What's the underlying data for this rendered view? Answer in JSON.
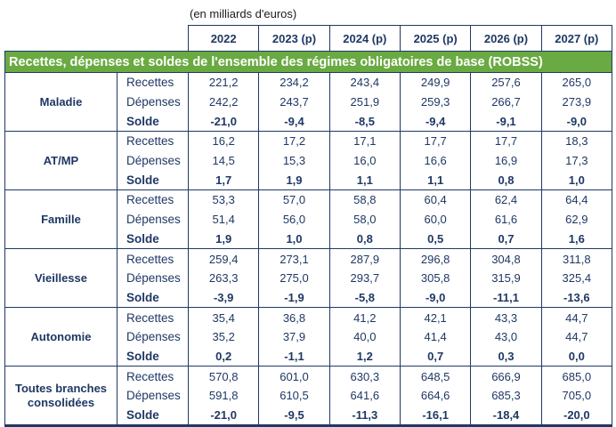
{
  "unit_label": "(en milliards d'euros)",
  "banner_title": "Recettes, dépenses et soldes de l'ensemble des régimes obligatoires de base (ROBSS)",
  "years": [
    "2022",
    "2023 (p)",
    "2024 (p)",
    "2025 (p)",
    "2026 (p)",
    "2027 (p)"
  ],
  "colors": {
    "banner_green": "#6aaa42",
    "text_navy": "#1f3864",
    "border_navy": "#1f3864",
    "banner_text": "#ffffff",
    "background": "#ffffff"
  },
  "groups": [
    {
      "name": "Maladie",
      "rows": [
        {
          "label": "Recettes",
          "values": [
            "221,2",
            "234,2",
            "243,4",
            "249,9",
            "257,6",
            "265,0"
          ]
        },
        {
          "label": "Dépenses",
          "values": [
            "242,2",
            "243,7",
            "251,9",
            "259,3",
            "266,7",
            "273,9"
          ]
        },
        {
          "label": "Solde",
          "values": [
            "-21,0",
            "-9,4",
            "-8,5",
            "-9,4",
            "-9,1",
            "-9,0"
          ]
        }
      ]
    },
    {
      "name": "AT/MP",
      "rows": [
        {
          "label": "Recettes",
          "values": [
            "16,2",
            "17,2",
            "17,1",
            "17,7",
            "17,7",
            "18,3"
          ]
        },
        {
          "label": "Dépenses",
          "values": [
            "14,5",
            "15,3",
            "16,0",
            "16,6",
            "16,9",
            "17,3"
          ]
        },
        {
          "label": "Solde",
          "values": [
            "1,7",
            "1,9",
            "1,1",
            "1,1",
            "0,8",
            "1,0"
          ]
        }
      ]
    },
    {
      "name": "Famille",
      "rows": [
        {
          "label": "Recettes",
          "values": [
            "53,3",
            "57,0",
            "58,8",
            "60,4",
            "62,4",
            "64,4"
          ]
        },
        {
          "label": "Dépenses",
          "values": [
            "51,4",
            "56,0",
            "58,0",
            "60,0",
            "61,6",
            "62,9"
          ]
        },
        {
          "label": "Solde",
          "values": [
            "1,9",
            "1,0",
            "0,8",
            "0,5",
            "0,7",
            "1,6"
          ]
        }
      ]
    },
    {
      "name": "Vieillesse",
      "rows": [
        {
          "label": "Recettes",
          "values": [
            "259,4",
            "273,1",
            "287,9",
            "296,8",
            "304,8",
            "311,8"
          ]
        },
        {
          "label": "Dépenses",
          "values": [
            "263,3",
            "275,0",
            "293,7",
            "305,8",
            "315,9",
            "325,4"
          ]
        },
        {
          "label": "Solde",
          "values": [
            "-3,9",
            "-1,9",
            "-5,8",
            "-9,0",
            "-11,1",
            "-13,6"
          ]
        }
      ]
    },
    {
      "name": "Autonomie",
      "rows": [
        {
          "label": "Recettes",
          "values": [
            "35,4",
            "36,8",
            "41,2",
            "42,1",
            "43,3",
            "44,7"
          ]
        },
        {
          "label": "Dépenses",
          "values": [
            "35,2",
            "37,9",
            "40,0",
            "41,4",
            "43,0",
            "44,7"
          ]
        },
        {
          "label": "Solde",
          "values": [
            "0,2",
            "-1,1",
            "1,2",
            "0,7",
            "0,3",
            "0,0"
          ]
        }
      ]
    },
    {
      "name": "Toutes branches consolidées",
      "rows": [
        {
          "label": "Recettes",
          "values": [
            "570,8",
            "601,0",
            "630,3",
            "648,5",
            "666,9",
            "685,0"
          ]
        },
        {
          "label": "Dépenses",
          "values": [
            "591,8",
            "610,5",
            "641,6",
            "664,6",
            "685,3",
            "705,0"
          ]
        },
        {
          "label": "Solde",
          "values": [
            "-21,0",
            "-9,5",
            "-11,3",
            "-16,1",
            "-18,4",
            "-20,0"
          ]
        }
      ]
    }
  ],
  "chart_data": {
    "type": "table",
    "title": "Recettes, dépenses et soldes de l'ensemble des régimes obligatoires de base (ROBSS)",
    "unit": "en milliards d'euros",
    "columns": [
      "",
      "",
      "2022",
      "2023 (p)",
      "2024 (p)",
      "2025 (p)",
      "2026 (p)",
      "2027 (p)"
    ],
    "rows": [
      [
        "Maladie",
        "Recettes",
        221.2,
        234.2,
        243.4,
        249.9,
        257.6,
        265.0
      ],
      [
        "Maladie",
        "Dépenses",
        242.2,
        243.7,
        251.9,
        259.3,
        266.7,
        273.9
      ],
      [
        "Maladie",
        "Solde",
        -21.0,
        -9.4,
        -8.5,
        -9.4,
        -9.1,
        -9.0
      ],
      [
        "AT/MP",
        "Recettes",
        16.2,
        17.2,
        17.1,
        17.7,
        17.7,
        18.3
      ],
      [
        "AT/MP",
        "Dépenses",
        14.5,
        15.3,
        16.0,
        16.6,
        16.9,
        17.3
      ],
      [
        "AT/MP",
        "Solde",
        1.7,
        1.9,
        1.1,
        1.1,
        0.8,
        1.0
      ],
      [
        "Famille",
        "Recettes",
        53.3,
        57.0,
        58.8,
        60.4,
        62.4,
        64.4
      ],
      [
        "Famille",
        "Dépenses",
        51.4,
        56.0,
        58.0,
        60.0,
        61.6,
        62.9
      ],
      [
        "Famille",
        "Solde",
        1.9,
        1.0,
        0.8,
        0.5,
        0.7,
        1.6
      ],
      [
        "Vieillesse",
        "Recettes",
        259.4,
        273.1,
        287.9,
        296.8,
        304.8,
        311.8
      ],
      [
        "Vieillesse",
        "Dépenses",
        263.3,
        275.0,
        293.7,
        305.8,
        315.9,
        325.4
      ],
      [
        "Vieillesse",
        "Solde",
        -3.9,
        -1.9,
        -5.8,
        -9.0,
        -11.1,
        -13.6
      ],
      [
        "Autonomie",
        "Recettes",
        35.4,
        36.8,
        41.2,
        42.1,
        43.3,
        44.7
      ],
      [
        "Autonomie",
        "Dépenses",
        35.2,
        37.9,
        40.0,
        41.4,
        43.0,
        44.7
      ],
      [
        "Autonomie",
        "Solde",
        0.2,
        -1.1,
        1.2,
        0.7,
        0.3,
        0.0
      ],
      [
        "Toutes branches consolidées",
        "Recettes",
        570.8,
        601.0,
        630.3,
        648.5,
        666.9,
        685.0
      ],
      [
        "Toutes branches consolidées",
        "Dépenses",
        591.8,
        610.5,
        641.6,
        664.6,
        685.3,
        705.0
      ],
      [
        "Toutes branches consolidées",
        "Solde",
        -21.0,
        -9.5,
        -11.3,
        -16.1,
        -18.4,
        -20.0
      ]
    ]
  }
}
